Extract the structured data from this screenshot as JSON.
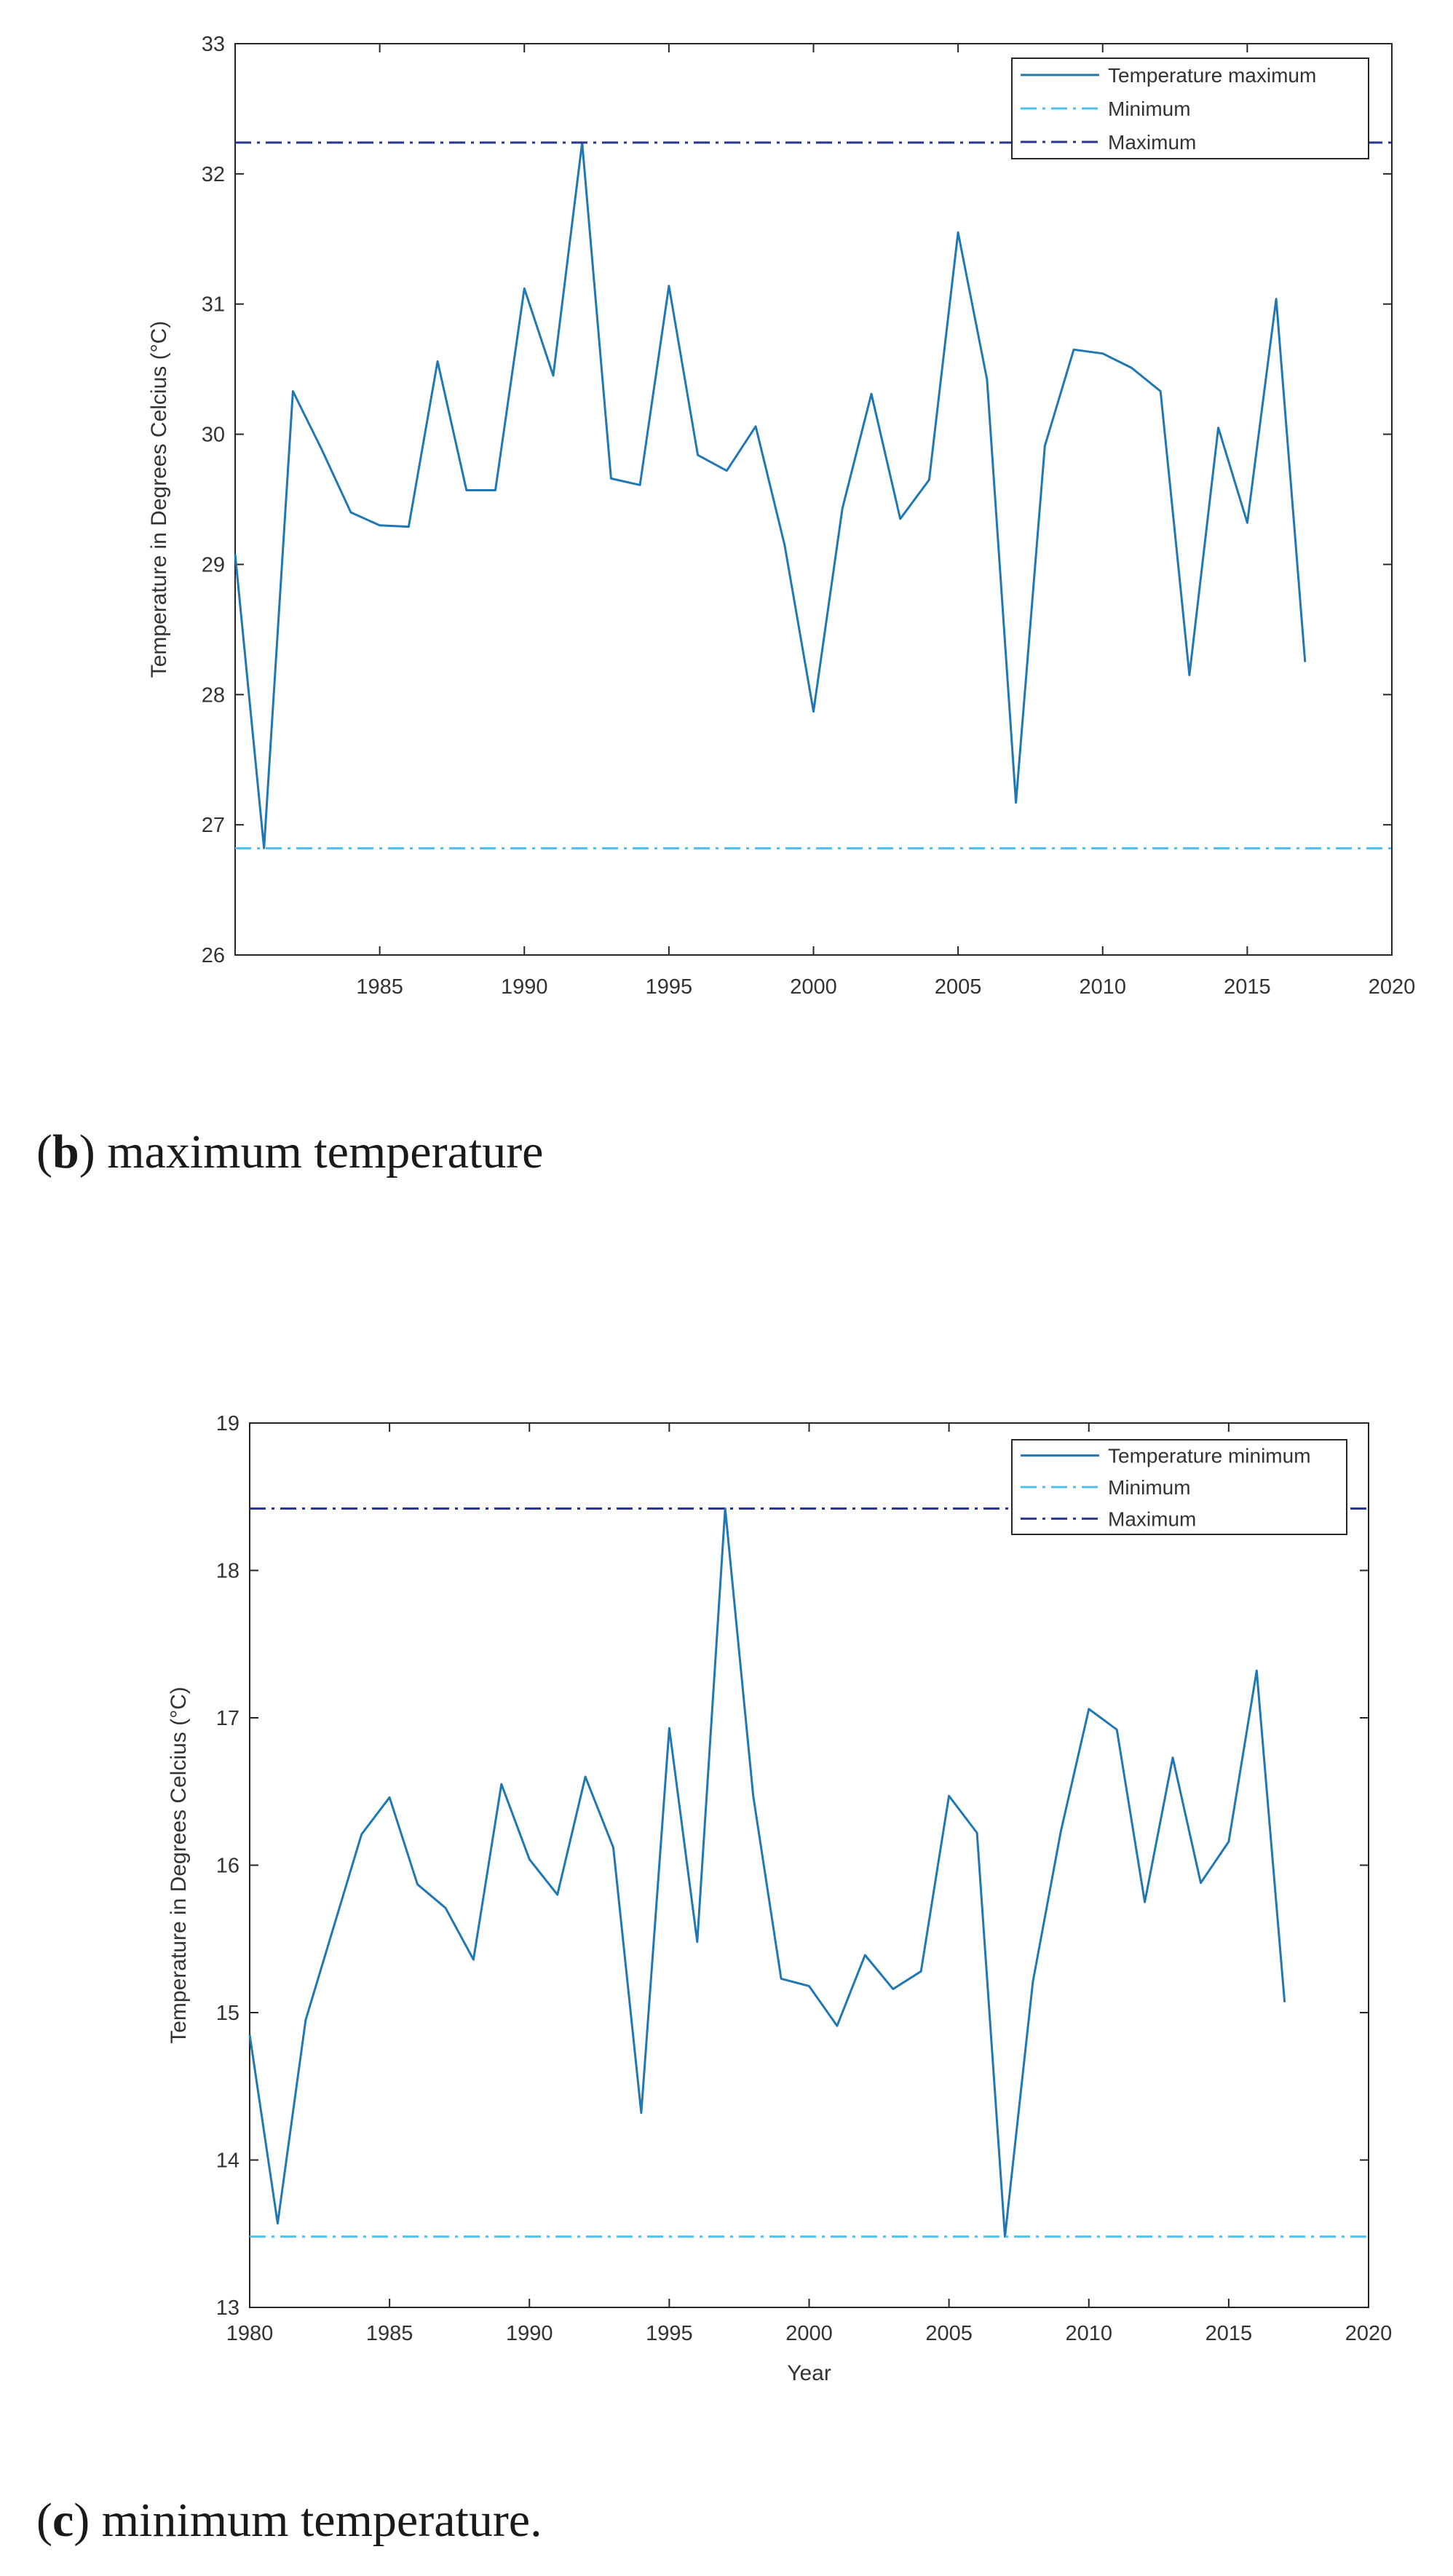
{
  "chart_data": [
    {
      "type": "line",
      "panel_letter": "b",
      "caption_text": "maximum temperature",
      "ylabel": "Temperature in Degrees Celcius (°C)",
      "xlabel": "",
      "xlim": [
        1980,
        2020
      ],
      "ylim": [
        26,
        33
      ],
      "x_ticks": [
        "1985",
        "1990",
        "1995",
        "2000",
        "2005",
        "2010",
        "2015",
        "2020"
      ],
      "y_ticks": [
        "26",
        "27",
        "28",
        "29",
        "30",
        "31",
        "32",
        "33"
      ],
      "x": [
        1980,
        1981,
        1982,
        1983,
        1984,
        1985,
        1986,
        1987,
        1988,
        1989,
        1990,
        1991,
        1992,
        1993,
        1994,
        1995,
        1996,
        1997,
        1998,
        1999,
        2000,
        2001,
        2002,
        2003,
        2004,
        2005,
        2006,
        2007,
        2008,
        2009,
        2010,
        2011,
        2012,
        2013,
        2014,
        2015,
        2016,
        2017
      ],
      "series": [
        {
          "name": "Temperature maximum",
          "values": [
            29.08,
            26.82,
            30.33,
            29.88,
            29.4,
            29.3,
            29.29,
            30.56,
            29.57,
            29.57,
            31.12,
            30.45,
            32.24,
            29.66,
            29.61,
            31.14,
            29.84,
            29.72,
            30.06,
            29.15,
            27.87,
            29.43,
            30.31,
            29.35,
            29.65,
            31.55,
            30.42,
            27.17,
            29.91,
            30.65,
            30.62,
            30.51,
            30.33,
            28.15,
            30.05,
            29.32,
            31.04,
            28.25
          ],
          "color": "#1f77b4",
          "style": "solid"
        },
        {
          "name": "Minimum",
          "value": 26.82,
          "color": "#4dbeee",
          "style": "dashdot"
        },
        {
          "name": "Maximum",
          "value": 32.24,
          "color": "#283593",
          "style": "dashdot"
        }
      ],
      "legend_position": "top-right",
      "grid": false
    },
    {
      "type": "line",
      "panel_letter": "c",
      "caption_text": "minimum temperature.",
      "ylabel": "Temperature in Degrees Celcius (°C)",
      "xlabel": "Year",
      "xlim": [
        1980,
        2020
      ],
      "ylim": [
        13,
        19
      ],
      "x_ticks": [
        "1980",
        "1985",
        "1990",
        "1995",
        "2000",
        "2005",
        "2010",
        "2015",
        "2020"
      ],
      "y_ticks": [
        "13",
        "14",
        "15",
        "16",
        "17",
        "18",
        "19"
      ],
      "x": [
        1980,
        1981,
        1982,
        1983,
        1984,
        1985,
        1986,
        1987,
        1988,
        1989,
        1990,
        1991,
        1992,
        1993,
        1994,
        1995,
        1996,
        1997,
        1998,
        1999,
        2000,
        2001,
        2002,
        2003,
        2004,
        2005,
        2006,
        2007,
        2008,
        2009,
        2010,
        2011,
        2012,
        2013,
        2014,
        2015,
        2016,
        2017
      ],
      "series": [
        {
          "name": "Temperature minimum",
          "values": [
            14.85,
            13.57,
            14.95,
            15.58,
            16.21,
            16.46,
            15.87,
            15.71,
            15.36,
            16.55,
            16.04,
            15.8,
            16.6,
            16.12,
            14.32,
            16.93,
            15.48,
            18.42,
            16.47,
            15.23,
            15.18,
            14.91,
            15.39,
            15.16,
            15.28,
            16.47,
            16.22,
            13.48,
            15.21,
            16.23,
            17.06,
            16.92,
            15.75,
            16.73,
            15.88,
            16.16,
            17.32,
            15.07
          ],
          "color": "#1f77b4",
          "style": "solid"
        },
        {
          "name": "Minimum",
          "value": 13.48,
          "color": "#4dbeee",
          "style": "dashdot"
        },
        {
          "name": "Maximum",
          "value": 18.42,
          "color": "#283593",
          "style": "dashdot"
        }
      ],
      "legend_position": "top-right",
      "grid": false
    }
  ]
}
